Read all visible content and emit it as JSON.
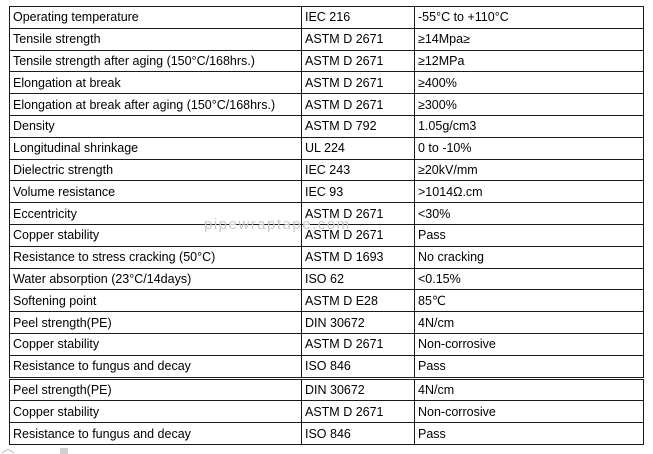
{
  "table": {
    "rows": [
      {
        "property": "Operating temperature",
        "standard": "IEC 216",
        "value": "-55°C to +110°C"
      },
      {
        "property": "Tensile strength",
        "standard": "ASTM D 2671",
        "value": "≥14Mpa≥"
      },
      {
        "property": "Tensile strength after aging (150°C/168hrs.)",
        "standard": "ASTM D 2671",
        "value": "≥12MPa"
      },
      {
        "property": "Elongation at break",
        "standard": "ASTM D 2671",
        "value": "≥400%"
      },
      {
        "property": "Elongation at break after aging (150°C/168hrs.)",
        "standard": "ASTM D 2671",
        "value": "≥300%"
      },
      {
        "property": "Density",
        "standard": "ASTM D 792",
        "value": "1.05g/cm3"
      },
      {
        "property": "Longitudinal shrinkage",
        "standard": "UL 224",
        "value": "0 to -10%"
      },
      {
        "property": "Dielectric strength",
        "standard": "IEC 243",
        "value": "≥20kV/mm"
      },
      {
        "property": "Volume resistance",
        "standard": "IEC 93",
        "value": ">1014Ω.cm"
      },
      {
        "property": "Eccentricity",
        "standard": "ASTM D 2671",
        "value": "<30%"
      },
      {
        "property": "Copper stability",
        "standard": "ASTM D 2671",
        "value": "Pass"
      },
      {
        "property": "Resistance to stress cracking (50°C)",
        "standard": "ASTM D 1693",
        "value": "No cracking"
      },
      {
        "property": "Water absorption (23°C/14days)",
        "standard": "ISO 62",
        "value": "<0.15%"
      },
      {
        "property": "Softening point",
        "standard": "ASTM D E28",
        "value": " 85℃"
      },
      {
        "property": "Peel strength(PE)",
        "standard": "DIN 30672",
        "value": "4N/cm"
      },
      {
        "property": "Copper stability",
        "standard": "ASTM D 2671",
        "value": "Non-corrosive"
      },
      {
        "property": "Resistance to fungus and decay",
        "standard": "ISO 846",
        "value": "Pass"
      },
      {
        "property": "Peel strength(PE)",
        "standard": "DIN 30672",
        "value": "4N/cm"
      },
      {
        "property": "Copper stability",
        "standard": "ASTM D 2671",
        "value": "Non-corrosive"
      },
      {
        "property": "Resistance to fungus and decay",
        "standard": "ISO 846",
        "value": "Pass"
      }
    ]
  },
  "watermark": {
    "text": "pipewraptape.com"
  }
}
